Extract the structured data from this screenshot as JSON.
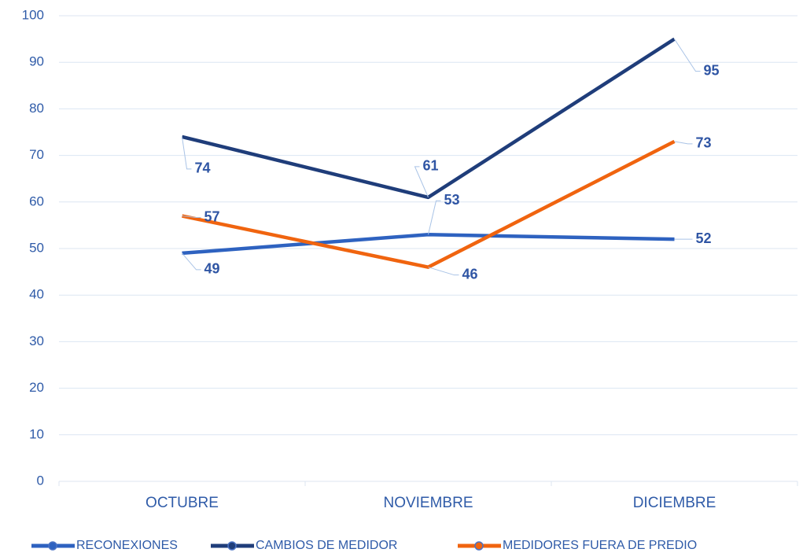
{
  "chart_data": {
    "type": "line",
    "categories": [
      "OCTUBRE",
      "NOVIEMBRE",
      "DICIEMBRE"
    ],
    "series": [
      {
        "name": "RECONEXIONES",
        "color": "#2e62c0",
        "values": [
          49,
          53,
          52
        ]
      },
      {
        "name": "CAMBIOS DE MEDIDOR",
        "color": "#1f3d7a",
        "values": [
          74,
          61,
          95
        ]
      },
      {
        "name": "MEDIDORES FUERA DE PREDIO",
        "color": "#f0640f",
        "values": [
          57,
          46,
          73
        ]
      }
    ],
    "ylim": [
      0,
      100
    ],
    "yticks": [
      0,
      10,
      20,
      30,
      40,
      50,
      60,
      70,
      80,
      90,
      100
    ],
    "grid": true,
    "legend": "bottom"
  }
}
